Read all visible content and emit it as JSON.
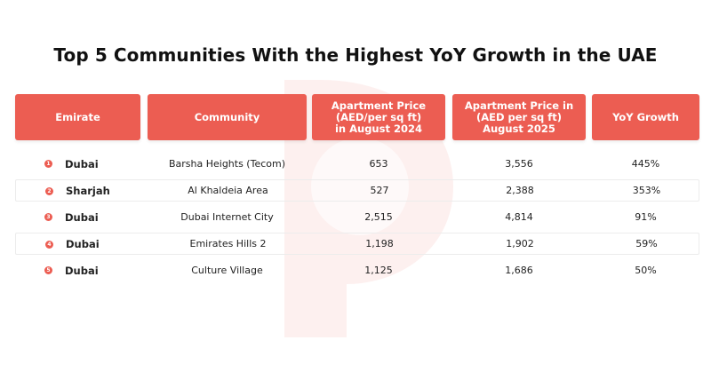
{
  "chart_data": {
    "type": "table",
    "title": "Top 5 Communities With the Highest YoY Growth in the UAE",
    "columns": [
      "Emirate",
      "Community",
      "Apartment Price\n(AED/per sq ft)\nin August 2024",
      "Apartment Price in\n(AED per sq ft)\nAugust 2025",
      "YoY Growth"
    ],
    "rows": [
      {
        "rank": "1",
        "emirate": "Dubai",
        "community": "Barsha Heights (Tecom)",
        "price_2024": "653",
        "price_2025": "3,556",
        "growth": "445%"
      },
      {
        "rank": "2",
        "emirate": "Sharjah",
        "community": "Al Khaldeia Area",
        "price_2024": "527",
        "price_2025": "2,388",
        "growth": "353%"
      },
      {
        "rank": "3",
        "emirate": "Dubai",
        "community": "Dubai Internet City",
        "price_2024": "2,515",
        "price_2025": "4,814",
        "growth": "91%"
      },
      {
        "rank": "4",
        "emirate": "Dubai",
        "community": "Emirates Hills 2",
        "price_2024": "1,198",
        "price_2025": "1,902",
        "growth": "59%"
      },
      {
        "rank": "5",
        "emirate": "Dubai",
        "community": "Culture Village",
        "price_2024": "1,125",
        "price_2025": "1,686",
        "growth": "50%"
      }
    ],
    "colors": {
      "header": "#ec5d52",
      "badge": "#ec5d52",
      "watermark": "#fbe3e1"
    }
  }
}
